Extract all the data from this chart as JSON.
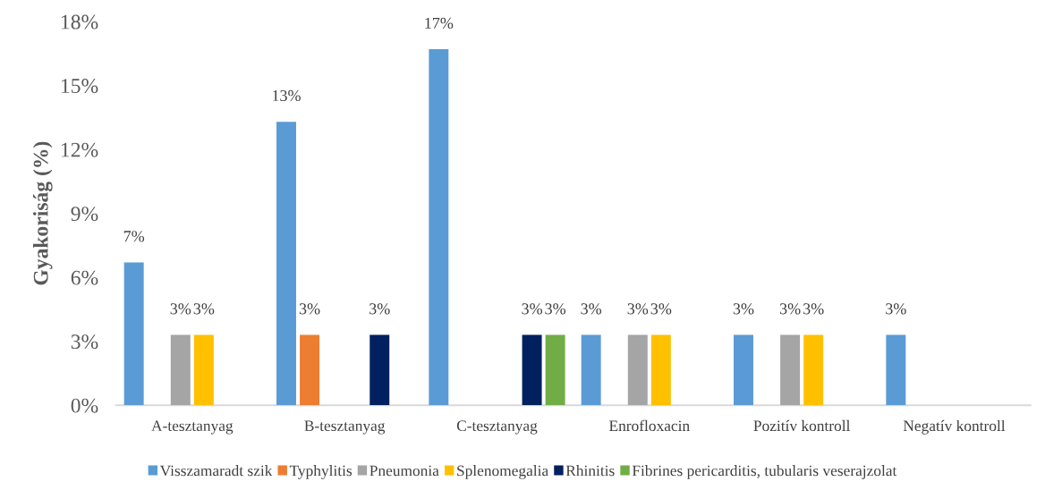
{
  "chart_data": {
    "type": "bar",
    "ylabel": "Gyakoriság (%)",
    "categories": [
      "A-tesztanyag",
      "B-tesztanyag",
      "C-tesztanyag",
      "Enrofloxacin",
      "Pozitív kontroll",
      "Negatív kontroll"
    ],
    "series": [
      {
        "name": "Visszamaradt szik",
        "color": "#5b9bd5",
        "values": [
          6.7,
          13.3,
          16.7,
          3.3,
          3.3,
          3.3
        ],
        "value_labels": [
          "7%",
          "13%",
          "17%",
          "3%",
          "3%",
          "3%"
        ]
      },
      {
        "name": "Typhylitis",
        "color": "#ed7d31",
        "values": [
          null,
          3.3,
          null,
          null,
          null,
          null
        ],
        "value_labels": [
          null,
          "3%",
          null,
          null,
          null,
          null
        ]
      },
      {
        "name": "Pneumonia",
        "color": "#a5a5a5",
        "values": [
          3.3,
          null,
          null,
          3.3,
          3.3,
          null
        ],
        "value_labels": [
          "3%",
          null,
          null,
          "3%",
          "3%",
          null
        ]
      },
      {
        "name": "Splenomegalia",
        "color": "#ffc000",
        "values": [
          3.3,
          null,
          null,
          3.3,
          3.3,
          null
        ],
        "value_labels": [
          "3%",
          null,
          null,
          "3%",
          "3%",
          null
        ]
      },
      {
        "name": "Rhinitis",
        "color": "#002060",
        "values": [
          null,
          3.3,
          3.3,
          null,
          null,
          null
        ],
        "value_labels": [
          null,
          "3%",
          "3%",
          null,
          null,
          null
        ]
      },
      {
        "name": "Fibrines pericarditis, tubularis veserajzolat",
        "color": "#70ad47",
        "values": [
          null,
          null,
          3.3,
          null,
          null,
          null
        ],
        "value_labels": [
          null,
          null,
          "3%",
          null,
          null,
          null
        ]
      }
    ],
    "ylim": [
      0,
      18
    ],
    "yticks": [
      {
        "value": 0,
        "label": "0%"
      },
      {
        "value": 3,
        "label": "3%"
      },
      {
        "value": 6,
        "label": "6%"
      },
      {
        "value": 9,
        "label": "9%"
      },
      {
        "value": 12,
        "label": "12%"
      },
      {
        "value": 15,
        "label": "15%"
      },
      {
        "value": 18,
        "label": "18%"
      }
    ],
    "legend": "bottom"
  }
}
